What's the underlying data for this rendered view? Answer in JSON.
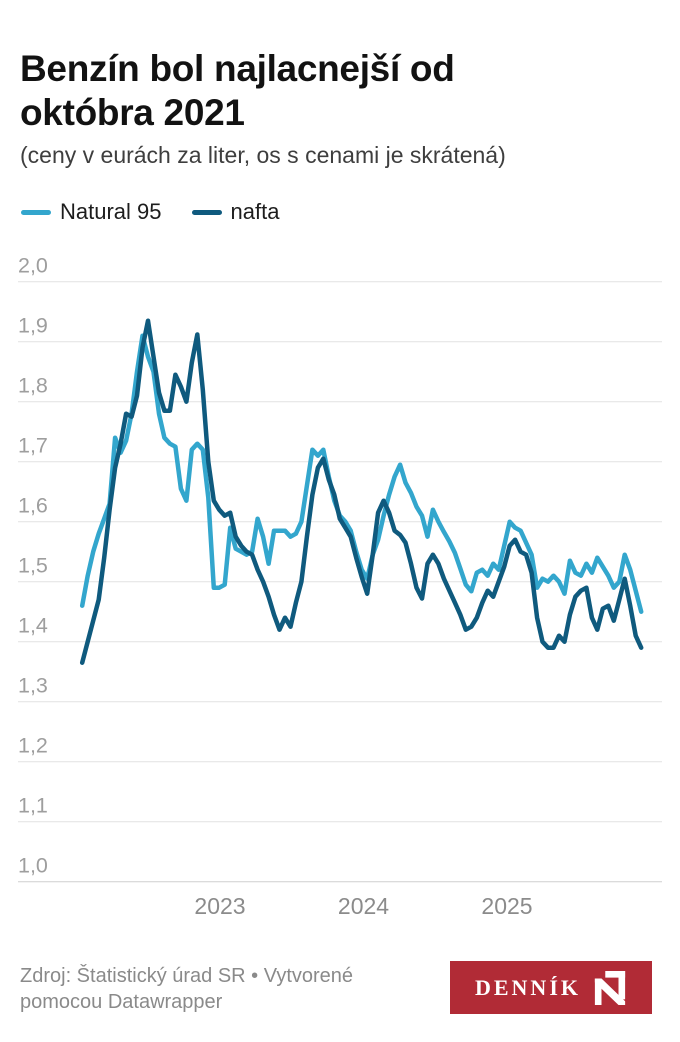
{
  "chart_data": {
    "type": "line",
    "title": "Benzín bol najlacnejší od októbra 2021",
    "subtitle": "(ceny v eurách za liter, os s cenami je skrátená)",
    "x_unit": "decimal_year",
    "x_first": 2022.04,
    "x_last": 2025.935,
    "ylim": [
      1.0,
      2.0
    ],
    "grid": true,
    "legend_position": "top-left",
    "y_ticks": [
      {
        "label": "2,0",
        "value": 2.0
      },
      {
        "label": "1,9",
        "value": 1.9
      },
      {
        "label": "1,8",
        "value": 1.8
      },
      {
        "label": "1,7",
        "value": 1.7
      },
      {
        "label": "1,6",
        "value": 1.6
      },
      {
        "label": "1,5",
        "value": 1.5
      },
      {
        "label": "1,4",
        "value": 1.4
      },
      {
        "label": "1,3",
        "value": 1.3
      },
      {
        "label": "1,2",
        "value": 1.2
      },
      {
        "label": "1,1",
        "value": 1.1
      },
      {
        "label": "1,0",
        "value": 1.0
      }
    ],
    "x_ticks": [
      {
        "label": "2023",
        "value": 2023
      },
      {
        "label": "2024",
        "value": 2024
      },
      {
        "label": "2025",
        "value": 2025
      }
    ],
    "series": [
      {
        "name": "Natural 95",
        "color": "#33a6cd",
        "values": [
          1.46,
          1.51,
          1.55,
          1.58,
          1.605,
          1.63,
          1.74,
          1.715,
          1.735,
          1.78,
          1.85,
          1.91,
          1.875,
          1.85,
          1.78,
          1.74,
          1.73,
          1.725,
          1.655,
          1.635,
          1.72,
          1.73,
          1.72,
          1.64,
          1.49,
          1.49,
          1.495,
          1.59,
          1.555,
          1.55,
          1.545,
          1.55,
          1.605,
          1.575,
          1.53,
          1.585,
          1.585,
          1.585,
          1.575,
          1.58,
          1.6,
          1.66,
          1.72,
          1.71,
          1.72,
          1.675,
          1.635,
          1.61,
          1.6,
          1.585,
          1.55,
          1.52,
          1.505,
          1.545,
          1.57,
          1.61,
          1.645,
          1.675,
          1.695,
          1.665,
          1.648,
          1.625,
          1.61,
          1.575,
          1.62,
          1.6,
          1.583,
          1.567,
          1.548,
          1.522,
          1.495,
          1.484,
          1.515,
          1.52,
          1.51,
          1.53,
          1.52,
          1.56,
          1.6,
          1.59,
          1.585,
          1.565,
          1.545,
          1.49,
          1.505,
          1.5,
          1.51,
          1.5,
          1.48,
          1.535,
          1.515,
          1.51,
          1.53,
          1.515,
          1.54,
          1.525,
          1.51,
          1.49,
          1.5,
          1.545,
          1.52,
          1.485,
          1.45
        ]
      },
      {
        "name": "nafta",
        "color": "#0f5a7e",
        "values": [
          1.365,
          1.4,
          1.435,
          1.47,
          1.54,
          1.62,
          1.69,
          1.73,
          1.78,
          1.775,
          1.81,
          1.89,
          1.935,
          1.875,
          1.815,
          1.785,
          1.785,
          1.845,
          1.825,
          1.8,
          1.865,
          1.912,
          1.82,
          1.7,
          1.635,
          1.62,
          1.61,
          1.615,
          1.575,
          1.56,
          1.55,
          1.545,
          1.52,
          1.5,
          1.475,
          1.445,
          1.42,
          1.44,
          1.425,
          1.465,
          1.5,
          1.575,
          1.645,
          1.69,
          1.705,
          1.67,
          1.645,
          1.605,
          1.59,
          1.575,
          1.54,
          1.508,
          1.48,
          1.545,
          1.615,
          1.635,
          1.615,
          1.585,
          1.578,
          1.565,
          1.53,
          1.49,
          1.472,
          1.53,
          1.545,
          1.53,
          1.505,
          1.485,
          1.465,
          1.445,
          1.42,
          1.425,
          1.44,
          1.465,
          1.485,
          1.475,
          1.5,
          1.525,
          1.56,
          1.57,
          1.55,
          1.545,
          1.515,
          1.44,
          1.4,
          1.39,
          1.39,
          1.41,
          1.4,
          1.445,
          1.475,
          1.485,
          1.49,
          1.44,
          1.42,
          1.455,
          1.46,
          1.435,
          1.47,
          1.505,
          1.46,
          1.41,
          1.39
        ]
      }
    ]
  },
  "footer": {
    "source": "Zdroj: Štatistický úrad SR • Vytvorené pomocou Datawrapper",
    "logo": {
      "text": "DENNÍK",
      "mark": "N",
      "background": "#b12b36"
    }
  }
}
